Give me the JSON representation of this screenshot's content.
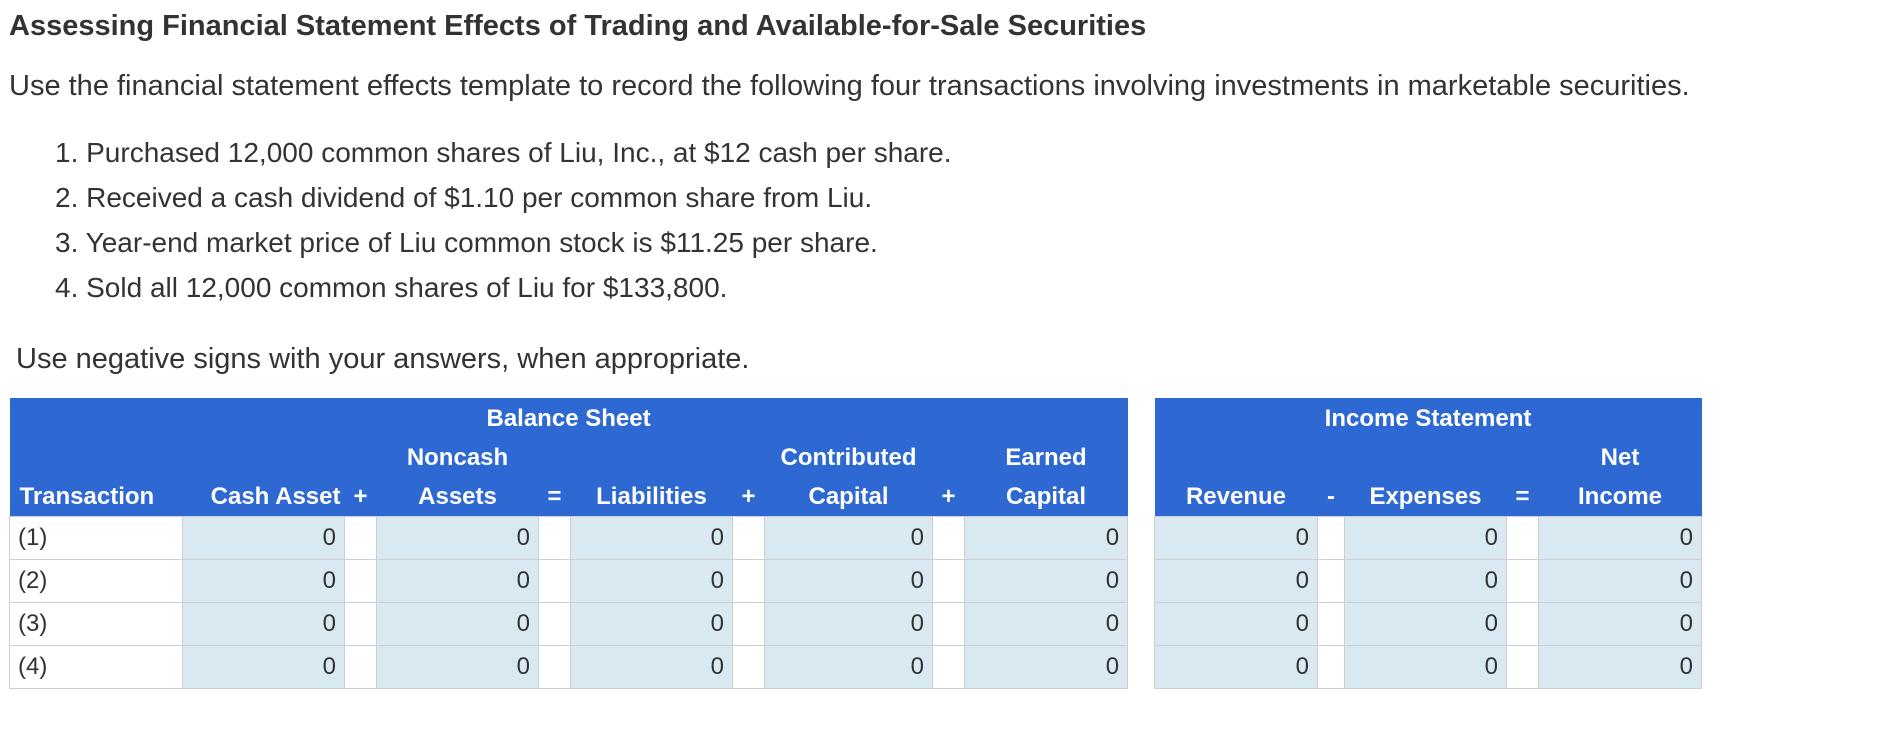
{
  "title": "Assessing Financial Statement Effects of Trading and Available-for-Sale Securities",
  "intro": "Use the financial statement effects template to record the following four transactions involving investments in marketable securities.",
  "steps": [
    "1. Purchased 12,000 common shares of Liu, Inc., at $12 cash per share.",
    "2. Received a cash dividend of $1.10 per common share from Liu.",
    "3. Year-end market price of Liu common stock is $11.25 per share.",
    "4. Sold all 12,000 common shares of Liu for $133,800."
  ],
  "note": "Use negative signs with your answers, when appropriate.",
  "balance_sheet": {
    "heading": "Balance Sheet",
    "top": {
      "noncash": "Noncash",
      "contributed": "Contributed",
      "earned": "Earned"
    },
    "cols": {
      "transaction": "Transaction",
      "cash": "Cash Asset",
      "op1": "+",
      "noncash": "Assets",
      "op2": "=",
      "liabilities": "Liabilities",
      "op3": "+",
      "contributed": "Capital",
      "op4": "+",
      "earned": "Capital"
    },
    "rows": [
      {
        "label": "(1)",
        "cash": "0",
        "noncash": "0",
        "liabilities": "0",
        "contributed": "0",
        "earned": "0"
      },
      {
        "label": "(2)",
        "cash": "0",
        "noncash": "0",
        "liabilities": "0",
        "contributed": "0",
        "earned": "0"
      },
      {
        "label": "(3)",
        "cash": "0",
        "noncash": "0",
        "liabilities": "0",
        "contributed": "0",
        "earned": "0"
      },
      {
        "label": "(4)",
        "cash": "0",
        "noncash": "0",
        "liabilities": "0",
        "contributed": "0",
        "earned": "0"
      }
    ]
  },
  "income_statement": {
    "heading": "Income Statement",
    "top": {
      "net": "Net"
    },
    "cols": {
      "revenue": "Revenue",
      "op1": "-",
      "expenses": "Expenses",
      "op2": "=",
      "net": "Income"
    },
    "rows": [
      {
        "revenue": "0",
        "expenses": "0",
        "net": "0"
      },
      {
        "revenue": "0",
        "expenses": "0",
        "net": "0"
      },
      {
        "revenue": "0",
        "expenses": "0",
        "net": "0"
      },
      {
        "revenue": "0",
        "expenses": "0",
        "net": "0"
      }
    ]
  }
}
